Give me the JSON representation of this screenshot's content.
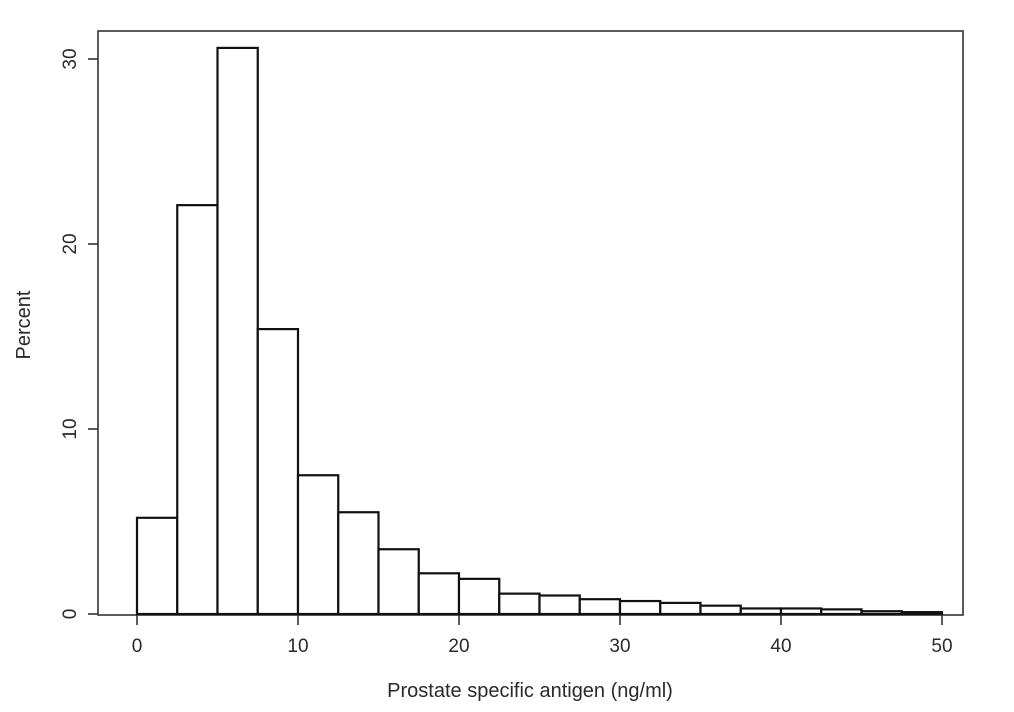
{
  "chart_data": {
    "type": "bar",
    "subtype": "histogram",
    "title": "",
    "xlabel": "Prostate specific antigen (ng/ml)",
    "ylabel": "Percent",
    "xlim": [
      0,
      50
    ],
    "ylim": [
      0,
      30
    ],
    "xticks": [
      0,
      10,
      20,
      30,
      40,
      50
    ],
    "yticks": [
      0,
      10,
      20,
      30
    ],
    "bin_width": 2.5,
    "bins": [
      {
        "x0": 0,
        "x1": 2.5,
        "value": 5.2
      },
      {
        "x0": 2.5,
        "x1": 5,
        "value": 22.1
      },
      {
        "x0": 5,
        "x1": 7.5,
        "value": 30.6
      },
      {
        "x0": 7.5,
        "x1": 10,
        "value": 15.4
      },
      {
        "x0": 10,
        "x1": 12.5,
        "value": 7.5
      },
      {
        "x0": 12.5,
        "x1": 15,
        "value": 5.5
      },
      {
        "x0": 15,
        "x1": 17.5,
        "value": 3.5
      },
      {
        "x0": 17.5,
        "x1": 20,
        "value": 2.2
      },
      {
        "x0": 20,
        "x1": 22.5,
        "value": 1.9
      },
      {
        "x0": 22.5,
        "x1": 25,
        "value": 1.1
      },
      {
        "x0": 25,
        "x1": 27.5,
        "value": 1.0
      },
      {
        "x0": 27.5,
        "x1": 30,
        "value": 0.8
      },
      {
        "x0": 30,
        "x1": 32.5,
        "value": 0.7
      },
      {
        "x0": 32.5,
        "x1": 35,
        "value": 0.6
      },
      {
        "x0": 35,
        "x1": 37.5,
        "value": 0.45
      },
      {
        "x0": 37.5,
        "x1": 40,
        "value": 0.3
      },
      {
        "x0": 40,
        "x1": 42.5,
        "value": 0.3
      },
      {
        "x0": 42.5,
        "x1": 45,
        "value": 0.25
      },
      {
        "x0": 45,
        "x1": 47.5,
        "value": 0.15
      },
      {
        "x0": 47.5,
        "x1": 50,
        "value": 0.1
      }
    ],
    "grid": false,
    "legend": "none",
    "colors": {
      "bar_fill": "#ffffff",
      "bar_stroke": "#111111",
      "frame": "#333333"
    }
  }
}
